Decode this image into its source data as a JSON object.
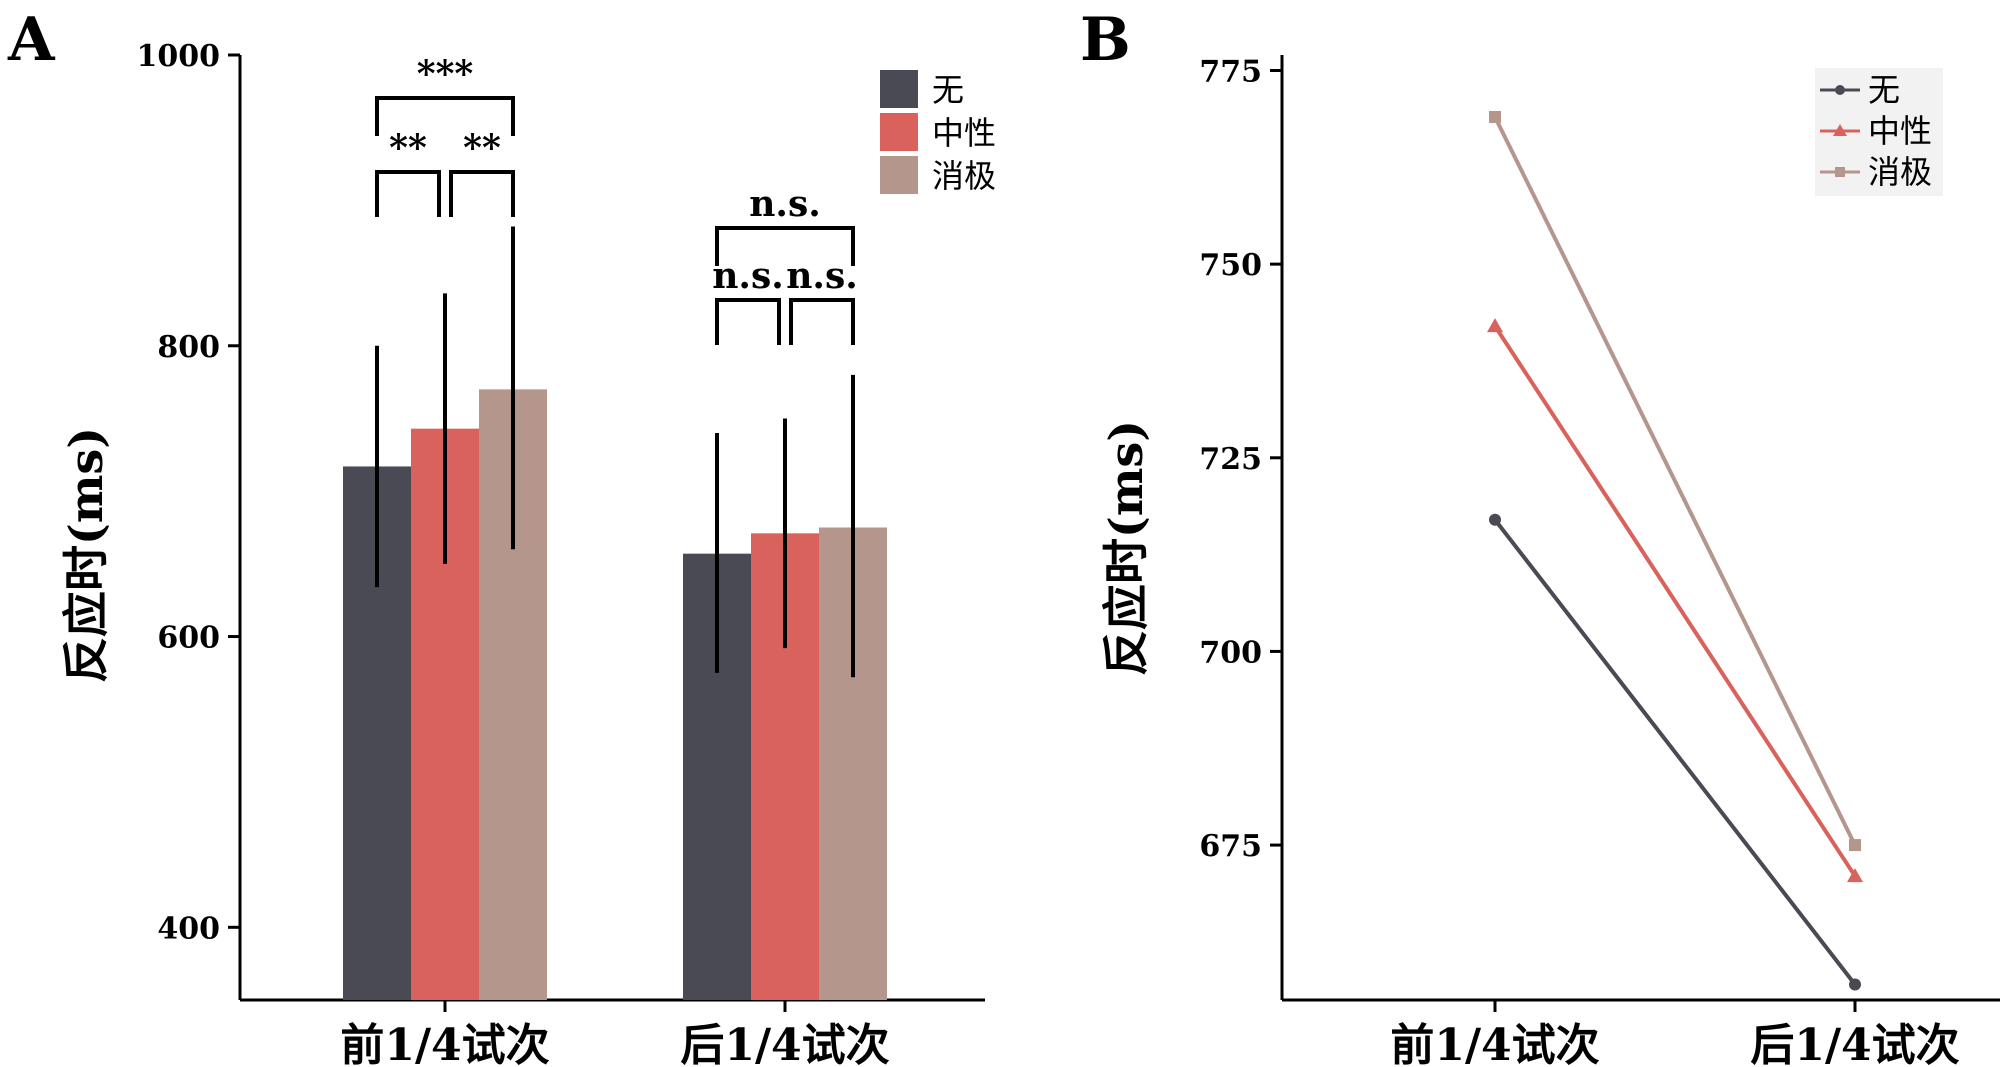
{
  "chart_data": [
    {
      "panel": "A",
      "type": "bar",
      "ylabel": "反应时(ms)",
      "xlabel": "",
      "ylim": [
        350,
        1000
      ],
      "yticks": [
        400,
        600,
        800,
        1000
      ],
      "categories": [
        "前1/4试次",
        "后1/4试次"
      ],
      "series": [
        {
          "name": "无",
          "color": "#4a4a55",
          "values": [
            717,
            657
          ],
          "err_low": [
            634,
            575
          ],
          "err_high": [
            800,
            740
          ]
        },
        {
          "name": "中性",
          "color": "#d9625c",
          "values": [
            743,
            671
          ],
          "err_low": [
            650,
            592
          ],
          "err_high": [
            836,
            750
          ]
        },
        {
          "name": "消极",
          "color": "#b4968d",
          "values": [
            770,
            675
          ],
          "err_low": [
            660,
            572
          ],
          "err_high": [
            882,
            780
          ]
        }
      ],
      "significance": [
        {
          "group": 0,
          "from": 0,
          "to": 2,
          "label": "***"
        },
        {
          "group": 0,
          "from": 0,
          "to": 1,
          "label": "**"
        },
        {
          "group": 0,
          "from": 1,
          "to": 2,
          "label": "**"
        },
        {
          "group": 1,
          "from": 0,
          "to": 2,
          "label": "n.s."
        },
        {
          "group": 1,
          "from": 0,
          "to": 1,
          "label": "n.s."
        },
        {
          "group": 1,
          "from": 1,
          "to": 2,
          "label": "n.s."
        }
      ],
      "legend": [
        "无",
        "中性",
        "消极"
      ]
    },
    {
      "panel": "B",
      "type": "line",
      "ylabel": "反应时(ms)",
      "xlabel": "",
      "ylim": [
        655,
        777
      ],
      "yticks": [
        675,
        700,
        725,
        750,
        775
      ],
      "categories": [
        "前1/4试次",
        "后1/4试次"
      ],
      "series": [
        {
          "name": "无",
          "color": "#4a4a55",
          "marker": "circle",
          "values": [
            717,
            657
          ]
        },
        {
          "name": "中性",
          "color": "#d9625c",
          "marker": "triangle",
          "values": [
            742,
            671
          ]
        },
        {
          "name": "消极",
          "color": "#b4968d",
          "marker": "square",
          "values": [
            769,
            675
          ]
        }
      ],
      "legend": [
        "无",
        "中性",
        "消极"
      ]
    }
  ]
}
